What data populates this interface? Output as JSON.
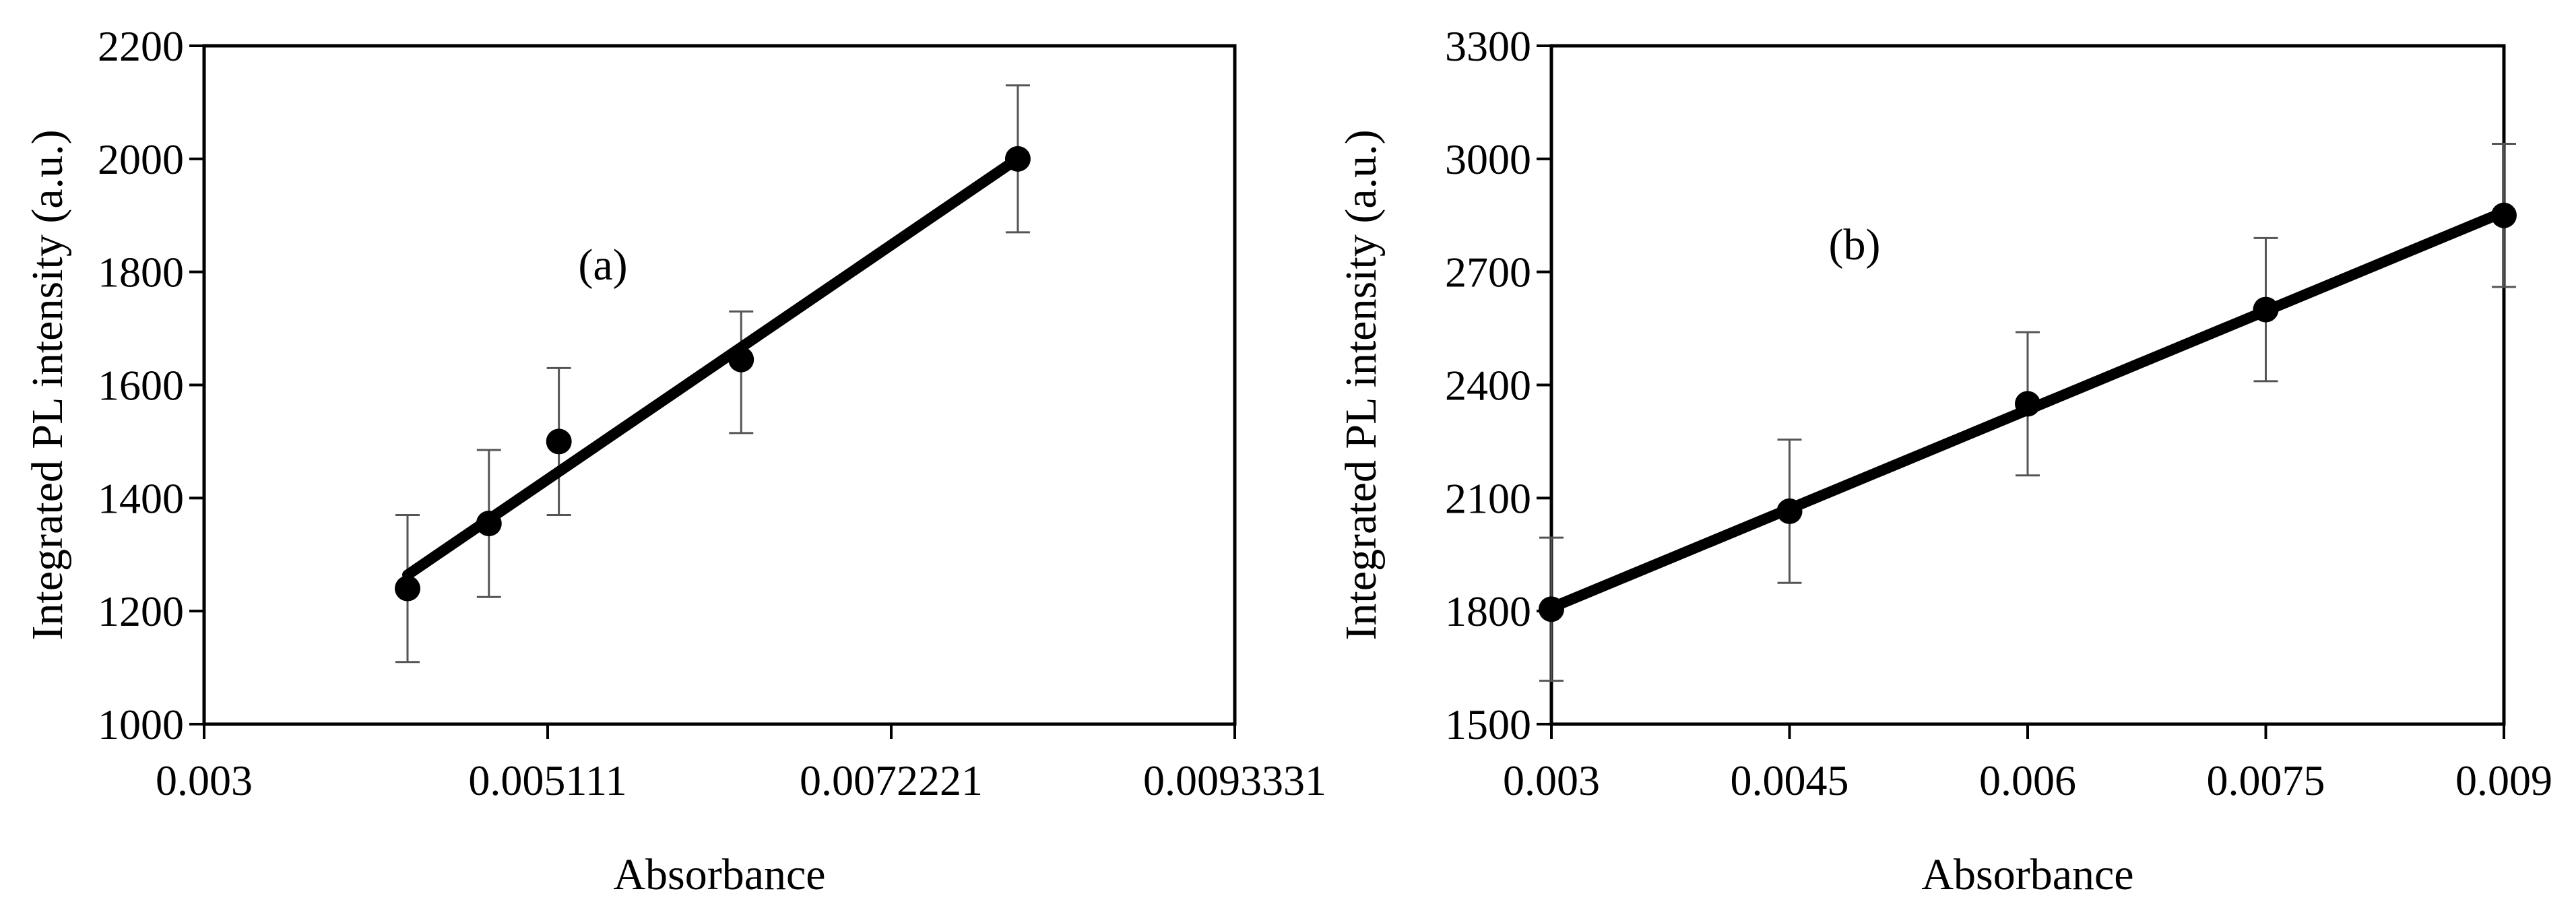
{
  "chart_data": [
    {
      "type": "scatter",
      "panel_label": "(a)",
      "xlabel": "Absorbance",
      "ylabel": "Integrated PL intensity  (a.u.)",
      "xlim": [
        0.003,
        0.0093331
      ],
      "ylim": [
        1000,
        2200
      ],
      "xticks": [
        0.003,
        0.005111,
        0.0072221,
        0.0093331
      ],
      "xtick_labels": [
        "0.003",
        "0.005111",
        "0.0072221",
        "0.0093331"
      ],
      "yticks": [
        1000,
        1200,
        1400,
        1600,
        1800,
        2000,
        2200
      ],
      "ytick_labels": [
        "1000",
        "1200",
        "1400",
        "1600",
        "1800",
        "2000",
        "2200"
      ],
      "grid": false,
      "trendline": true,
      "series": [
        {
          "x": [
            0.00425,
            0.00475,
            0.00518,
            0.0063,
            0.008
          ],
          "y": [
            1240,
            1355,
            1500,
            1645,
            2000
          ],
          "error_lower": [
            130,
            130,
            130,
            130,
            130
          ],
          "error_upper": [
            130,
            130,
            130,
            85,
            130
          ]
        }
      ]
    },
    {
      "type": "scatter",
      "panel_label": "(b)",
      "xlabel": "Absorbance",
      "ylabel": "Integrated PL intensity  (a.u.)",
      "xlim": [
        0.003,
        0.009
      ],
      "ylim": [
        1500,
        3300
      ],
      "xticks": [
        0.003,
        0.0045,
        0.006,
        0.0075,
        0.009
      ],
      "xtick_labels": [
        "0.003",
        "0.0045",
        "0.006",
        "0.0075",
        "0.009"
      ],
      "yticks": [
        1500,
        1800,
        2100,
        2400,
        2700,
        3000,
        3300
      ],
      "ytick_labels": [
        "1500",
        "1800",
        "2100",
        "2400",
        "2700",
        "3000",
        "3300"
      ],
      "grid": false,
      "trendline": true,
      "series": [
        {
          "x": [
            0.003,
            0.0045,
            0.006,
            0.0075,
            0.009
          ],
          "y": [
            1805,
            2065,
            2350,
            2600,
            2850
          ],
          "error_lower": [
            190,
            190,
            190,
            190,
            190
          ],
          "error_upper": [
            190,
            190,
            190,
            190,
            190
          ]
        }
      ]
    }
  ]
}
